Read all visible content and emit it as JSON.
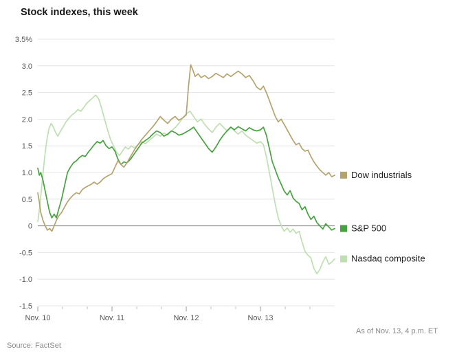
{
  "title": "Stock indexes, this week",
  "footer": {
    "source": "Source: FactSet",
    "as_of": "As of Nov. 13, 4 p.m. ET"
  },
  "colors": {
    "grid": "#e4e4e4",
    "zero_line": "#7f7f7f",
    "axis_text": "#555555",
    "major_tick": "#9a9a9a",
    "minor_tick": "#c0c0c0"
  },
  "chart_data": {
    "type": "line",
    "title": "Stock indexes, this week",
    "xlabel": "",
    "ylabel": "",
    "y_unit": "%",
    "ylim": [
      -1.5,
      3.5
    ],
    "xlim": [
      0,
      4
    ],
    "grid": true,
    "zero_line": true,
    "legend_position": "right",
    "yticks": [
      {
        "v": 3.5,
        "label": "3.5%"
      },
      {
        "v": 3.0,
        "label": "3.0"
      },
      {
        "v": 2.5,
        "label": "2.5"
      },
      {
        "v": 2.0,
        "label": "2.0"
      },
      {
        "v": 1.5,
        "label": "1.5"
      },
      {
        "v": 1.0,
        "label": "1.0"
      },
      {
        "v": 0.5,
        "label": "0.5"
      },
      {
        "v": 0.0,
        "label": "0"
      },
      {
        "v": -0.5,
        "label": "-0.5"
      },
      {
        "v": -1.0,
        "label": "-1.0"
      },
      {
        "v": -1.5,
        "label": "-1.5"
      }
    ],
    "xticks": [
      {
        "v": 0,
        "label": "Nov. 10"
      },
      {
        "v": 1,
        "label": "Nov. 11"
      },
      {
        "v": 2,
        "label": "Nov. 12"
      },
      {
        "v": 3,
        "label": "Nov. 13"
      }
    ],
    "series": [
      {
        "name": "Dow industrials",
        "color": "#b5a36e",
        "points": [
          [
            0,
            0.62
          ],
          [
            0.02,
            0.45
          ],
          [
            0.04,
            0.25
          ],
          [
            0.07,
            0.1
          ],
          [
            0.1,
            0
          ],
          [
            0.13,
            -0.08
          ],
          [
            0.16,
            -0.05
          ],
          [
            0.19,
            -0.1
          ],
          [
            0.22,
            0
          ],
          [
            0.25,
            0.1
          ],
          [
            0.28,
            0.18
          ],
          [
            0.32,
            0.25
          ],
          [
            0.36,
            0.35
          ],
          [
            0.4,
            0.45
          ],
          [
            0.44,
            0.52
          ],
          [
            0.48,
            0.58
          ],
          [
            0.52,
            0.62
          ],
          [
            0.56,
            0.6
          ],
          [
            0.6,
            0.68
          ],
          [
            0.64,
            0.72
          ],
          [
            0.68,
            0.75
          ],
          [
            0.72,
            0.78
          ],
          [
            0.76,
            0.82
          ],
          [
            0.8,
            0.78
          ],
          [
            0.84,
            0.82
          ],
          [
            0.88,
            0.88
          ],
          [
            0.92,
            0.92
          ],
          [
            0.96,
            0.95
          ],
          [
            1,
            0.98
          ],
          [
            1.04,
            1.1
          ],
          [
            1.08,
            1.22
          ],
          [
            1.12,
            1.15
          ],
          [
            1.16,
            1.1
          ],
          [
            1.2,
            1.18
          ],
          [
            1.25,
            1.3
          ],
          [
            1.3,
            1.42
          ],
          [
            1.35,
            1.52
          ],
          [
            1.4,
            1.62
          ],
          [
            1.45,
            1.7
          ],
          [
            1.5,
            1.78
          ],
          [
            1.55,
            1.86
          ],
          [
            1.6,
            1.95
          ],
          [
            1.65,
            2.05
          ],
          [
            1.7,
            1.98
          ],
          [
            1.75,
            1.92
          ],
          [
            1.8,
            2
          ],
          [
            1.85,
            2.05
          ],
          [
            1.9,
            1.98
          ],
          [
            1.95,
            2.02
          ],
          [
            2,
            2.08
          ],
          [
            2.03,
            2.6
          ],
          [
            2.06,
            3.02
          ],
          [
            2.09,
            2.92
          ],
          [
            2.12,
            2.8
          ],
          [
            2.16,
            2.85
          ],
          [
            2.2,
            2.78
          ],
          [
            2.25,
            2.82
          ],
          [
            2.3,
            2.76
          ],
          [
            2.35,
            2.8
          ],
          [
            2.4,
            2.86
          ],
          [
            2.45,
            2.82
          ],
          [
            2.5,
            2.78
          ],
          [
            2.55,
            2.85
          ],
          [
            2.6,
            2.8
          ],
          [
            2.65,
            2.85
          ],
          [
            2.7,
            2.9
          ],
          [
            2.75,
            2.85
          ],
          [
            2.8,
            2.78
          ],
          [
            2.85,
            2.82
          ],
          [
            2.9,
            2.72
          ],
          [
            2.95,
            2.6
          ],
          [
            3,
            2.55
          ],
          [
            3.04,
            2.62
          ],
          [
            3.08,
            2.5
          ],
          [
            3.12,
            2.35
          ],
          [
            3.16,
            2.2
          ],
          [
            3.2,
            2.05
          ],
          [
            3.24,
            1.95
          ],
          [
            3.28,
            2
          ],
          [
            3.32,
            1.9
          ],
          [
            3.36,
            1.8
          ],
          [
            3.4,
            1.7
          ],
          [
            3.44,
            1.6
          ],
          [
            3.48,
            1.52
          ],
          [
            3.52,
            1.55
          ],
          [
            3.56,
            1.45
          ],
          [
            3.6,
            1.4
          ],
          [
            3.64,
            1.42
          ],
          [
            3.68,
            1.3
          ],
          [
            3.72,
            1.2
          ],
          [
            3.76,
            1.12
          ],
          [
            3.8,
            1.05
          ],
          [
            3.84,
            1
          ],
          [
            3.88,
            0.95
          ],
          [
            3.92,
            1
          ],
          [
            3.96,
            0.92
          ],
          [
            4,
            0.95
          ]
        ]
      },
      {
        "name": "S&P 500",
        "color": "#46a23f",
        "points": [
          [
            0,
            1.08
          ],
          [
            0.02,
            0.95
          ],
          [
            0.04,
            1
          ],
          [
            0.07,
            0.85
          ],
          [
            0.1,
            0.65
          ],
          [
            0.13,
            0.45
          ],
          [
            0.16,
            0.25
          ],
          [
            0.19,
            0.15
          ],
          [
            0.22,
            0.22
          ],
          [
            0.25,
            0.15
          ],
          [
            0.28,
            0.3
          ],
          [
            0.32,
            0.5
          ],
          [
            0.36,
            0.75
          ],
          [
            0.4,
            1
          ],
          [
            0.44,
            1.1
          ],
          [
            0.48,
            1.18
          ],
          [
            0.52,
            1.22
          ],
          [
            0.56,
            1.28
          ],
          [
            0.6,
            1.32
          ],
          [
            0.64,
            1.3
          ],
          [
            0.68,
            1.38
          ],
          [
            0.72,
            1.45
          ],
          [
            0.76,
            1.52
          ],
          [
            0.8,
            1.58
          ],
          [
            0.84,
            1.55
          ],
          [
            0.88,
            1.6
          ],
          [
            0.92,
            1.5
          ],
          [
            0.96,
            1.45
          ],
          [
            1,
            1.48
          ],
          [
            1.04,
            1.4
          ],
          [
            1.08,
            1.25
          ],
          [
            1.12,
            1.15
          ],
          [
            1.16,
            1.2
          ],
          [
            1.2,
            1.18
          ],
          [
            1.25,
            1.25
          ],
          [
            1.3,
            1.35
          ],
          [
            1.35,
            1.45
          ],
          [
            1.4,
            1.55
          ],
          [
            1.45,
            1.6
          ],
          [
            1.5,
            1.65
          ],
          [
            1.55,
            1.72
          ],
          [
            1.6,
            1.78
          ],
          [
            1.65,
            1.75
          ],
          [
            1.7,
            1.68
          ],
          [
            1.75,
            1.72
          ],
          [
            1.8,
            1.78
          ],
          [
            1.85,
            1.75
          ],
          [
            1.9,
            1.7
          ],
          [
            1.95,
            1.72
          ],
          [
            2,
            1.76
          ],
          [
            2.05,
            1.8
          ],
          [
            2.1,
            1.85
          ],
          [
            2.15,
            1.75
          ],
          [
            2.2,
            1.65
          ],
          [
            2.25,
            1.55
          ],
          [
            2.3,
            1.45
          ],
          [
            2.35,
            1.38
          ],
          [
            2.4,
            1.48
          ],
          [
            2.45,
            1.6
          ],
          [
            2.5,
            1.7
          ],
          [
            2.55,
            1.78
          ],
          [
            2.6,
            1.85
          ],
          [
            2.65,
            1.8
          ],
          [
            2.7,
            1.86
          ],
          [
            2.75,
            1.82
          ],
          [
            2.8,
            1.78
          ],
          [
            2.85,
            1.84
          ],
          [
            2.9,
            1.8
          ],
          [
            2.95,
            1.78
          ],
          [
            3,
            1.8
          ],
          [
            3.04,
            1.85
          ],
          [
            3.08,
            1.7
          ],
          [
            3.12,
            1.45
          ],
          [
            3.16,
            1.2
          ],
          [
            3.2,
            1.05
          ],
          [
            3.24,
            0.9
          ],
          [
            3.28,
            0.78
          ],
          [
            3.32,
            0.65
          ],
          [
            3.36,
            0.58
          ],
          [
            3.4,
            0.66
          ],
          [
            3.44,
            0.52
          ],
          [
            3.48,
            0.46
          ],
          [
            3.52,
            0.42
          ],
          [
            3.56,
            0.3
          ],
          [
            3.6,
            0.36
          ],
          [
            3.64,
            0.22
          ],
          [
            3.68,
            0.12
          ],
          [
            3.72,
            0.18
          ],
          [
            3.76,
            0.06
          ],
          [
            3.8,
            0
          ],
          [
            3.84,
            -0.06
          ],
          [
            3.88,
            0.04
          ],
          [
            3.92,
            -0.02
          ],
          [
            3.96,
            -0.08
          ],
          [
            4,
            -0.05
          ]
        ]
      },
      {
        "name": "Nasdaq composite",
        "color": "#bedfb2",
        "points": [
          [
            0,
            0.08
          ],
          [
            0.03,
            0.4
          ],
          [
            0.06,
            0.85
          ],
          [
            0.09,
            1.25
          ],
          [
            0.12,
            1.6
          ],
          [
            0.15,
            1.82
          ],
          [
            0.18,
            1.92
          ],
          [
            0.21,
            1.85
          ],
          [
            0.24,
            1.75
          ],
          [
            0.27,
            1.68
          ],
          [
            0.3,
            1.76
          ],
          [
            0.34,
            1.85
          ],
          [
            0.38,
            1.95
          ],
          [
            0.42,
            2.02
          ],
          [
            0.46,
            2.08
          ],
          [
            0.5,
            2.12
          ],
          [
            0.54,
            2.18
          ],
          [
            0.58,
            2.15
          ],
          [
            0.62,
            2.22
          ],
          [
            0.66,
            2.3
          ],
          [
            0.7,
            2.35
          ],
          [
            0.74,
            2.4
          ],
          [
            0.78,
            2.45
          ],
          [
            0.82,
            2.38
          ],
          [
            0.86,
            2.2
          ],
          [
            0.9,
            2
          ],
          [
            0.94,
            1.8
          ],
          [
            0.98,
            1.62
          ],
          [
            1.02,
            1.5
          ],
          [
            1.06,
            1.38
          ],
          [
            1.1,
            1.32
          ],
          [
            1.14,
            1.4
          ],
          [
            1.18,
            1.48
          ],
          [
            1.22,
            1.44
          ],
          [
            1.26,
            1.5
          ],
          [
            1.3,
            1.46
          ],
          [
            1.35,
            1.52
          ],
          [
            1.4,
            1.58
          ],
          [
            1.45,
            1.54
          ],
          [
            1.5,
            1.6
          ],
          [
            1.55,
            1.66
          ],
          [
            1.6,
            1.72
          ],
          [
            1.65,
            1.68
          ],
          [
            1.7,
            1.74
          ],
          [
            1.75,
            1.7
          ],
          [
            1.8,
            1.78
          ],
          [
            1.85,
            1.84
          ],
          [
            1.9,
            1.92
          ],
          [
            1.95,
            2.02
          ],
          [
            2,
            2.1
          ],
          [
            2.05,
            2.15
          ],
          [
            2.1,
            2.05
          ],
          [
            2.15,
            1.95
          ],
          [
            2.2,
            2
          ],
          [
            2.25,
            1.9
          ],
          [
            2.3,
            1.82
          ],
          [
            2.35,
            1.75
          ],
          [
            2.4,
            1.85
          ],
          [
            2.45,
            1.92
          ],
          [
            2.5,
            1.85
          ],
          [
            2.55,
            1.78
          ],
          [
            2.6,
            1.85
          ],
          [
            2.65,
            1.78
          ],
          [
            2.7,
            1.72
          ],
          [
            2.75,
            1.78
          ],
          [
            2.8,
            1.7
          ],
          [
            2.85,
            1.65
          ],
          [
            2.9,
            1.6
          ],
          [
            2.95,
            1.55
          ],
          [
            3,
            1.58
          ],
          [
            3.04,
            1.52
          ],
          [
            3.08,
            1.3
          ],
          [
            3.12,
            1
          ],
          [
            3.16,
            0.7
          ],
          [
            3.2,
            0.4
          ],
          [
            3.24,
            0.15
          ],
          [
            3.28,
            0
          ],
          [
            3.32,
            -0.1
          ],
          [
            3.36,
            -0.04
          ],
          [
            3.4,
            -0.12
          ],
          [
            3.44,
            -0.06
          ],
          [
            3.48,
            -0.14
          ],
          [
            3.52,
            -0.1
          ],
          [
            3.56,
            -0.3
          ],
          [
            3.6,
            -0.48
          ],
          [
            3.64,
            -0.55
          ],
          [
            3.68,
            -0.6
          ],
          [
            3.72,
            -0.8
          ],
          [
            3.76,
            -0.9
          ],
          [
            3.8,
            -0.82
          ],
          [
            3.84,
            -0.68
          ],
          [
            3.88,
            -0.58
          ],
          [
            3.92,
            -0.72
          ],
          [
            3.96,
            -0.68
          ],
          [
            4,
            -0.62
          ]
        ]
      }
    ]
  }
}
